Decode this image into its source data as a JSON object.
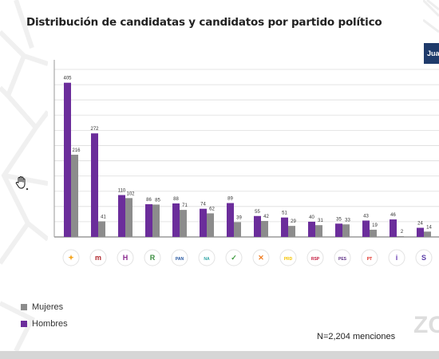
{
  "title": "Distribución de candidatas y candidatos por partido político",
  "legend": {
    "mujeres": "Mujeres",
    "hombres": "Hombres"
  },
  "note": "N=2,204 menciones",
  "user_tile": "Juan",
  "watermark": "ZO",
  "colors": {
    "mujeres": "#8c8c8c",
    "hombres": "#6b2d9b",
    "axis": "#9a9a9a",
    "grid": "#dddddd"
  },
  "icons": [
    "pan-movement-icon",
    "morena-logo-icon",
    "h-party-icon",
    "pri-logo-icon",
    "pan-logo-icon",
    "na-logo-icon",
    "pvem-logo-icon",
    "mc-logo-icon",
    "prd-logo-icon",
    "rsp-logo-icon",
    "pes-logo-icon",
    "pt-logo-icon",
    "info-party-icon",
    "somos-logo-icon"
  ],
  "chart_data": {
    "type": "bar",
    "categories": [
      "",
      "",
      "",
      "",
      "",
      "",
      "",
      "",
      "",
      "",
      "",
      "",
      "",
      ""
    ],
    "series": [
      {
        "name": "Hombres",
        "values": [
          405,
          272,
          110,
          86,
          88,
          74,
          89,
          55,
          51,
          40,
          35,
          43,
          46,
          24
        ]
      },
      {
        "name": "Mujeres",
        "values": [
          216,
          41,
          102,
          85,
          71,
          62,
          39,
          42,
          29,
          31,
          33,
          19,
          2,
          14
        ]
      }
    ],
    "ylim": [
      0,
      440
    ],
    "grid": true,
    "legend_position": "bottom-left"
  }
}
